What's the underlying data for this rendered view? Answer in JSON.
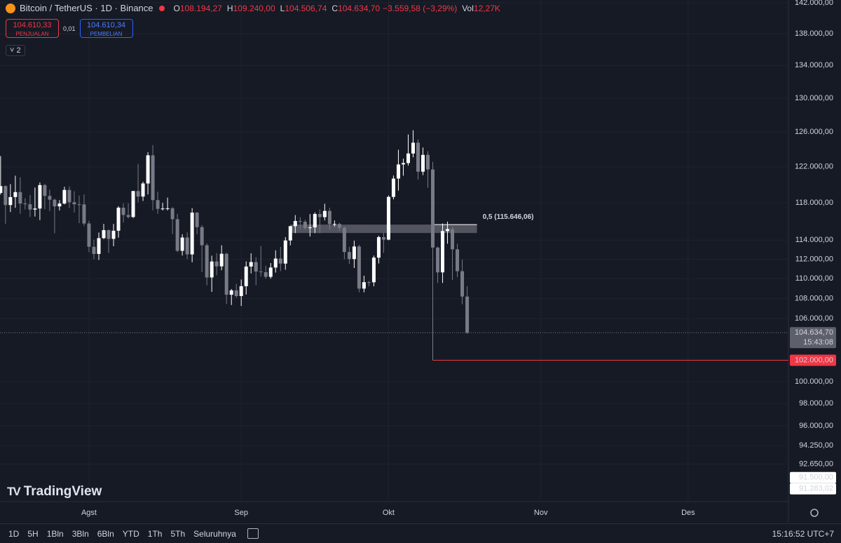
{
  "chart_data": {
    "type": "candlestick",
    "log_scale": true,
    "grid": true,
    "up_color": "#ffffff",
    "down_color": "#787b86",
    "xlim": [
      -18.12,
      142.42
    ],
    "xticks": [
      {
        "value": 0,
        "label": "Agst"
      },
      {
        "value": 31,
        "label": "Sep"
      },
      {
        "value": 61,
        "label": "Okt"
      },
      {
        "value": 92,
        "label": "Nov"
      },
      {
        "value": 122,
        "label": "Des"
      }
    ],
    "ylim": [
      89490,
      142369
    ],
    "yticks": [
      {
        "value": 142000,
        "label": "142.000,00"
      },
      {
        "value": 138000,
        "label": "138.000,00"
      },
      {
        "value": 134000,
        "label": "134.000,00"
      },
      {
        "value": 130000,
        "label": "130.000,00"
      },
      {
        "value": 126000,
        "label": "126.000,00"
      },
      {
        "value": 122000,
        "label": "122.000,00"
      },
      {
        "value": 118000,
        "label": "118.000,00"
      },
      {
        "value": 114000,
        "label": "114.000,00"
      },
      {
        "value": 112000,
        "label": "112.000,00"
      },
      {
        "value": 110000,
        "label": "110.000,00"
      },
      {
        "value": 108000,
        "label": "108.000,00"
      },
      {
        "value": 106000,
        "label": "106.000,00"
      },
      {
        "value": 100000,
        "label": "100.000,00"
      },
      {
        "value": 98000,
        "label": "98.000,00"
      },
      {
        "value": 96000,
        "label": "96.000,00"
      },
      {
        "value": 94250,
        "label": "94.250,00"
      },
      {
        "value": 92650,
        "label": "92.650,00"
      }
    ],
    "x": [
      -18,
      -17,
      -16,
      -15,
      -14,
      -13,
      -12,
      -11,
      -10,
      -9,
      -8,
      -7,
      -6,
      -5,
      -4,
      -3,
      -2,
      -1,
      0,
      1,
      2,
      3,
      4,
      5,
      6,
      7,
      8,
      9,
      10,
      11,
      12,
      13,
      14,
      15,
      16,
      17,
      18,
      19,
      20,
      21,
      22,
      23,
      24,
      25,
      26,
      27,
      28,
      29,
      30,
      31,
      32,
      33,
      34,
      35,
      36,
      37,
      38,
      39,
      40,
      41,
      42,
      43,
      44,
      45,
      46,
      47,
      48,
      49,
      50,
      51,
      52,
      53,
      54,
      55,
      56,
      57,
      58,
      59,
      60,
      61,
      62,
      63,
      64,
      65,
      66,
      67,
      68,
      69,
      70,
      71,
      72,
      73,
      74,
      75,
      76,
      77
    ],
    "open": [
      119086,
      119841,
      117759,
      118630,
      119177,
      117924,
      117840,
      117265,
      117380,
      119954,
      118756,
      118340,
      117614,
      117919,
      119416,
      118063,
      117840,
      117831,
      115764,
      113297,
      112546,
      114208,
      115055,
      114129,
      114992,
      117472,
      116674,
      116462,
      119294,
      118686,
      120134,
      123306,
      118295,
      117342,
      117380,
      117405,
      116227,
      112872,
      114271,
      112500,
      116936,
      115374,
      113458,
      110124,
      111763,
      111262,
      112566,
      108377,
      108817,
      108246,
      109237,
      111241,
      111705,
      110731,
      110660,
      110187,
      111137,
      112066,
      111547,
      113960,
      115482,
      116030,
      115950,
      115268,
      115350,
      116789,
      116448,
      117119,
      115697,
      115711,
      115306,
      112749,
      112015,
      113328,
      108994,
      109643,
      109635,
      112163,
      114311,
      114048,
      118649,
      120681,
      122267,
      122425,
      123514,
      124753,
      121451,
      123354,
      121705,
      113214,
      110645,
      114958,
      115166,
      113028,
      110763,
      108194.27
    ],
    "high": [
      123218,
      119940,
      120063,
      120998,
      120827,
      118499,
      118856,
      119676,
      120247,
      120090,
      119450,
      118451,
      118297,
      119766,
      119800,
      119273,
      118793,
      118922,
      116052,
      114040,
      114799,
      115720,
      115127,
      115716,
      117630,
      117944,
      117944,
      119311,
      122335,
      120324,
      123667,
      124474,
      119216,
      117999,
      118575,
      117543,
      116800,
      114618,
      114821,
      117429,
      117000,
      115600,
      113650,
      112371,
      112625,
      113450,
      112672,
      108956,
      109480,
      109914,
      111771,
      112616,
      112206,
      113385,
      111310,
      111600,
      112924,
      113292,
      114313,
      115488,
      116665,
      116440,
      116165,
      116781,
      116964,
      117286,
      117900,
      117455,
      116091,
      115836,
      115440,
      113290,
      113940,
      113500,
      110300,
      109767,
      112375,
      114464,
      114792,
      118800,
      121022,
      123944,
      122927,
      125708,
      126199,
      125126,
      124197,
      123768,
      122550,
      113322,
      115770,
      115963,
      115409,
      113612,
      111966,
      109240
    ],
    "low": [
      118905,
      115736,
      117000,
      117453,
      116812,
      117277,
      116467,
      116515,
      116128,
      117301,
      117103,
      114723,
      117166,
      117825,
      117427,
      116951,
      115800,
      115500,
      112722,
      112000,
      111920,
      114108,
      112650,
      113353,
      114259,
      115878,
      116299,
      116353,
      118050,
      118207,
      118920,
      117180,
      116803,
      117172,
      117172,
      114640,
      112732,
      112380,
      112015,
      111684,
      114610,
      110680,
      109329,
      108666,
      110345,
      110862,
      107463,
      107350,
      108076,
      107255,
      108393,
      110528,
      109330,
      110200,
      110000,
      110000,
      110621,
      110766,
      110917,
      113444,
      114740,
      115218,
      115135,
      114384,
      114737,
      114720,
      116092,
      115100,
      115440,
      115000,
      112000,
      111500,
      111100,
      108631,
      108620,
      109220,
      109228,
      111560,
      112656,
      113981,
      118383,
      119344,
      121000,
      122136,
      123084,
      120574,
      121066,
      119651,
      102000,
      109561,
      109565,
      113616,
      109866,
      110164,
      107428,
      104506.74
    ],
    "close": [
      119841,
      117759,
      118630,
      119177,
      117924,
      117840,
      117265,
      117380,
      119954,
      118756,
      118340,
      117614,
      117919,
      119416,
      118063,
      117840,
      117831,
      115764,
      113297,
      112546,
      114208,
      115055,
      114129,
      114992,
      117472,
      116674,
      116462,
      119294,
      118686,
      120134,
      123306,
      118295,
      117342,
      117380,
      117405,
      116227,
      112872,
      114271,
      112500,
      116936,
      115374,
      113458,
      110124,
      111763,
      111262,
      112566,
      108377,
      108817,
      108246,
      109237,
      111241,
      111705,
      110731,
      110660,
      110187,
      111137,
      112066,
      111547,
      113960,
      115482,
      116030,
      115950,
      115268,
      115350,
      116789,
      116448,
      117119,
      115697,
      115711,
      115306,
      112749,
      112015,
      113328,
      108994,
      109643,
      109635,
      112163,
      114311,
      114048,
      118649,
      120681,
      122267,
      122425,
      123514,
      124753,
      121451,
      123354,
      121705,
      113214,
      110645,
      114958,
      115166,
      113028,
      110763,
      108194,
      104634.7
    ],
    "fib_level": {
      "value": 115646.06,
      "label": "0,5 (115.646,06)",
      "from_x": 41,
      "to_x": 79
    },
    "price_labels": [
      {
        "value": 104634.7,
        "label": "104.634,70",
        "sublabel": "15:43:08",
        "color": "#5d606b",
        "text_color": "#ffffff",
        "line": "dotted"
      },
      {
        "value": 102000,
        "label": "102.000,00",
        "color": "#f23645",
        "text_color": "#ffffff",
        "line": "solid",
        "from_x": 70
      },
      {
        "value": 91500,
        "label": "91.500,00",
        "color": "#ffffff",
        "text_color": "#131722"
      },
      {
        "value": 91283.02,
        "label": "91.283,02",
        "color": "#ffffff",
        "text_color": "#131722"
      }
    ]
  },
  "legend": {
    "symbol": "Bitcoin / TetherUS · 1D · Binance",
    "fields": [
      {
        "key": "O",
        "value": "108.194,27"
      },
      {
        "key": "H",
        "value": "109.240,00"
      },
      {
        "key": "L",
        "value": "104.506,74"
      },
      {
        "key": "C",
        "value": "104.634,70"
      }
    ],
    "change": "−3.559,58 (−3,29%)",
    "volume_key": "Vol",
    "volume": "12,27K"
  },
  "trade": {
    "sell_price": "104.610,33",
    "sell_label": "PENJUALAN",
    "spread": "0,01",
    "buy_price": "104.610,34",
    "buy_label": "PEMBELIAN"
  },
  "indicators_count": 2,
  "logo": "TradingView",
  "toolbar": {
    "ranges": [
      "1D",
      "5H",
      "1Bln",
      "3Bln",
      "6Bln",
      "YTD",
      "1Th",
      "5Th",
      "Seluruhnya"
    ],
    "clock": "15:16:52 UTC+7"
  }
}
